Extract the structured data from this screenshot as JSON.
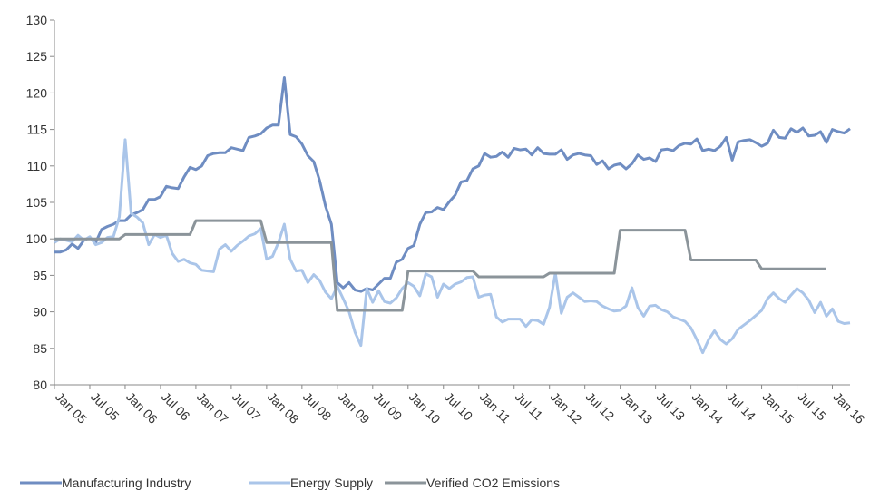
{
  "chart_data": {
    "type": "line",
    "categories": [
      "Jan 05",
      null,
      null,
      null,
      null,
      null,
      "Jul 05",
      null,
      null,
      null,
      null,
      null,
      "Jan 06",
      null,
      null,
      null,
      null,
      null,
      "Jul 06",
      null,
      null,
      null,
      null,
      null,
      "Jan 07",
      null,
      null,
      null,
      null,
      null,
      "Jul 07",
      null,
      null,
      null,
      null,
      null,
      "Jan 08",
      null,
      null,
      null,
      null,
      null,
      "Jul 08",
      null,
      null,
      null,
      null,
      null,
      "Jan 09",
      null,
      null,
      null,
      null,
      null,
      "Jul 09",
      null,
      null,
      null,
      null,
      null,
      "Jan 10",
      null,
      null,
      null,
      null,
      null,
      "Jul 10",
      null,
      null,
      null,
      null,
      null,
      "Jan 11",
      null,
      null,
      null,
      null,
      null,
      "Jul 11",
      null,
      null,
      null,
      null,
      null,
      "Jan 12",
      null,
      null,
      null,
      null,
      null,
      "Jul 12",
      null,
      null,
      null,
      null,
      null,
      "Jan 13",
      null,
      null,
      null,
      null,
      null,
      "Jul 13",
      null,
      null,
      null,
      null,
      null,
      "Jan 14",
      null,
      null,
      null,
      null,
      null,
      "Jul 14",
      null,
      null,
      null,
      null,
      null,
      "Jan 15",
      null,
      null,
      null,
      null,
      null,
      "Jul 15",
      null,
      null,
      null,
      null,
      null,
      "Jan 16",
      null,
      null,
      null
    ],
    "series": [
      {
        "name": "Manufacturing Industry",
        "color": "#6f8dc2",
        "values": [
          98.2,
          98.2,
          98.5,
          99.3,
          98.7,
          99.8,
          100.2,
          99.5,
          101.3,
          101.7,
          102,
          102.5,
          102.5,
          103.3,
          103.6,
          104,
          105.4,
          105.4,
          105.8,
          107.2,
          107,
          106.9,
          108.5,
          109.8,
          109.5,
          110,
          111.4,
          111.7,
          111.8,
          111.8,
          112.5,
          112.3,
          112.1,
          113.9,
          114.1,
          114.4,
          115.2,
          115.6,
          115.6,
          122.1,
          114.3,
          114,
          113,
          111.4,
          110.6,
          108,
          104.5,
          102,
          94,
          93.3,
          94,
          93,
          92.8,
          93.2,
          93,
          93.8,
          94.6,
          94.6,
          96.8,
          97.2,
          98.7,
          99.1,
          102,
          103.6,
          103.7,
          104.3,
          104,
          105.1,
          106,
          107.8,
          108,
          109.6,
          110,
          111.7,
          111.2,
          111.3,
          111.9,
          111.2,
          112.4,
          112.2,
          112.3,
          111.5,
          112.5,
          111.7,
          111.6,
          111.6,
          112.2,
          110.9,
          111.5,
          111.7,
          111.5,
          111.4,
          110.2,
          110.7,
          109.6,
          110.1,
          110.3,
          109.6,
          110.3,
          111.5,
          110.9,
          111.1,
          110.6,
          112.2,
          112.3,
          112.1,
          112.8,
          113.1,
          113,
          113.7,
          112.1,
          112.3,
          112.1,
          112.7,
          113.9,
          110.8,
          113.3,
          113.5,
          113.6,
          113.2,
          112.7,
          113.1,
          114.9,
          113.9,
          113.8,
          115.1,
          114.6,
          115.2,
          114.1,
          114.2,
          114.7,
          113.2,
          115,
          114.7,
          114.5,
          115.1
        ]
      },
      {
        "name": "Energy Supply",
        "color": "#aac5e9",
        "values": [
          99.5,
          100,
          99.8,
          99.6,
          100.5,
          99.8,
          100.3,
          99.2,
          99.5,
          100.2,
          100.3,
          103,
          113.6,
          103.5,
          103,
          102.2,
          99.2,
          100.6,
          100.2,
          100.5,
          98,
          96.9,
          97.2,
          96.7,
          96.5,
          95.7,
          95.6,
          95.5,
          98.6,
          99.2,
          98.3,
          99.1,
          99.7,
          100.4,
          100.7,
          101.4,
          97.2,
          97.6,
          99.5,
          102,
          97.2,
          95.6,
          95.7,
          94,
          95.1,
          94.3,
          92.7,
          91.8,
          93.5,
          91.8,
          90,
          87.2,
          85.4,
          93.2,
          91.3,
          92.9,
          91.4,
          91.2,
          91.9,
          93.2,
          94,
          93.5,
          92.2,
          95.2,
          94.8,
          92,
          93.8,
          93.2,
          93.8,
          94.1,
          94.7,
          94.8,
          92,
          92.3,
          92.4,
          89.3,
          88.6,
          89,
          89,
          89,
          88,
          88.9,
          88.8,
          88.3,
          90.6,
          95.3,
          89.8,
          92,
          92.6,
          92,
          91.4,
          91.5,
          91.4,
          90.8,
          90.4,
          90.1,
          90.2,
          90.8,
          93.3,
          90.6,
          89.4,
          90.8,
          90.9,
          90.3,
          90,
          89.3,
          89,
          88.7,
          87.8,
          86.2,
          84.4,
          86.2,
          87.4,
          86.2,
          85.6,
          86.3,
          87.6,
          88.2,
          88.8,
          89.5,
          90.2,
          91.8,
          92.6,
          91.8,
          91.3,
          92.3,
          93.2,
          92.6,
          91.6,
          89.9,
          91.3,
          89.4,
          90.4,
          88.7,
          88.4,
          88.5
        ]
      },
      {
        "name": "Verified CO2 Emissions",
        "color": "#8b949a",
        "values": [
          100,
          100,
          100,
          100,
          100,
          100,
          100,
          100,
          100,
          100,
          100,
          100,
          100.6,
          100.6,
          100.6,
          100.6,
          100.6,
          100.6,
          100.6,
          100.6,
          100.6,
          100.6,
          100.6,
          100.6,
          102.5,
          102.5,
          102.5,
          102.5,
          102.5,
          102.5,
          102.5,
          102.5,
          102.5,
          102.5,
          102.5,
          102.5,
          99.5,
          99.5,
          99.5,
          99.5,
          99.5,
          99.5,
          99.5,
          99.5,
          99.5,
          99.5,
          99.5,
          99.5,
          90.2,
          90.2,
          90.2,
          90.2,
          90.2,
          90.2,
          90.2,
          90.2,
          90.2,
          90.2,
          90.2,
          90.2,
          95.6,
          95.6,
          95.6,
          95.6,
          95.6,
          95.6,
          95.6,
          95.6,
          95.6,
          95.6,
          95.6,
          95.6,
          94.8,
          94.8,
          94.8,
          94.8,
          94.8,
          94.8,
          94.8,
          94.8,
          94.8,
          94.8,
          94.8,
          94.8,
          95.3,
          95.3,
          95.3,
          95.3,
          95.3,
          95.3,
          95.3,
          95.3,
          95.3,
          95.3,
          95.3,
          95.3,
          101.2,
          101.2,
          101.2,
          101.2,
          101.2,
          101.2,
          101.2,
          101.2,
          101.2,
          101.2,
          101.2,
          101.2,
          97.1,
          97.1,
          97.1,
          97.1,
          97.1,
          97.1,
          97.1,
          97.1,
          97.1,
          97.1,
          97.1,
          97.1,
          95.9,
          95.9,
          95.9,
          95.9,
          95.9,
          95.9,
          95.9,
          95.9,
          95.9,
          95.9,
          95.9,
          95.9,
          null,
          null,
          null,
          null
        ]
      }
    ],
    "ylim": [
      80,
      130
    ],
    "yticks": [
      80,
      85,
      90,
      95,
      100,
      105,
      110,
      115,
      120,
      125,
      130
    ],
    "grid": false,
    "legend": "bottom"
  }
}
